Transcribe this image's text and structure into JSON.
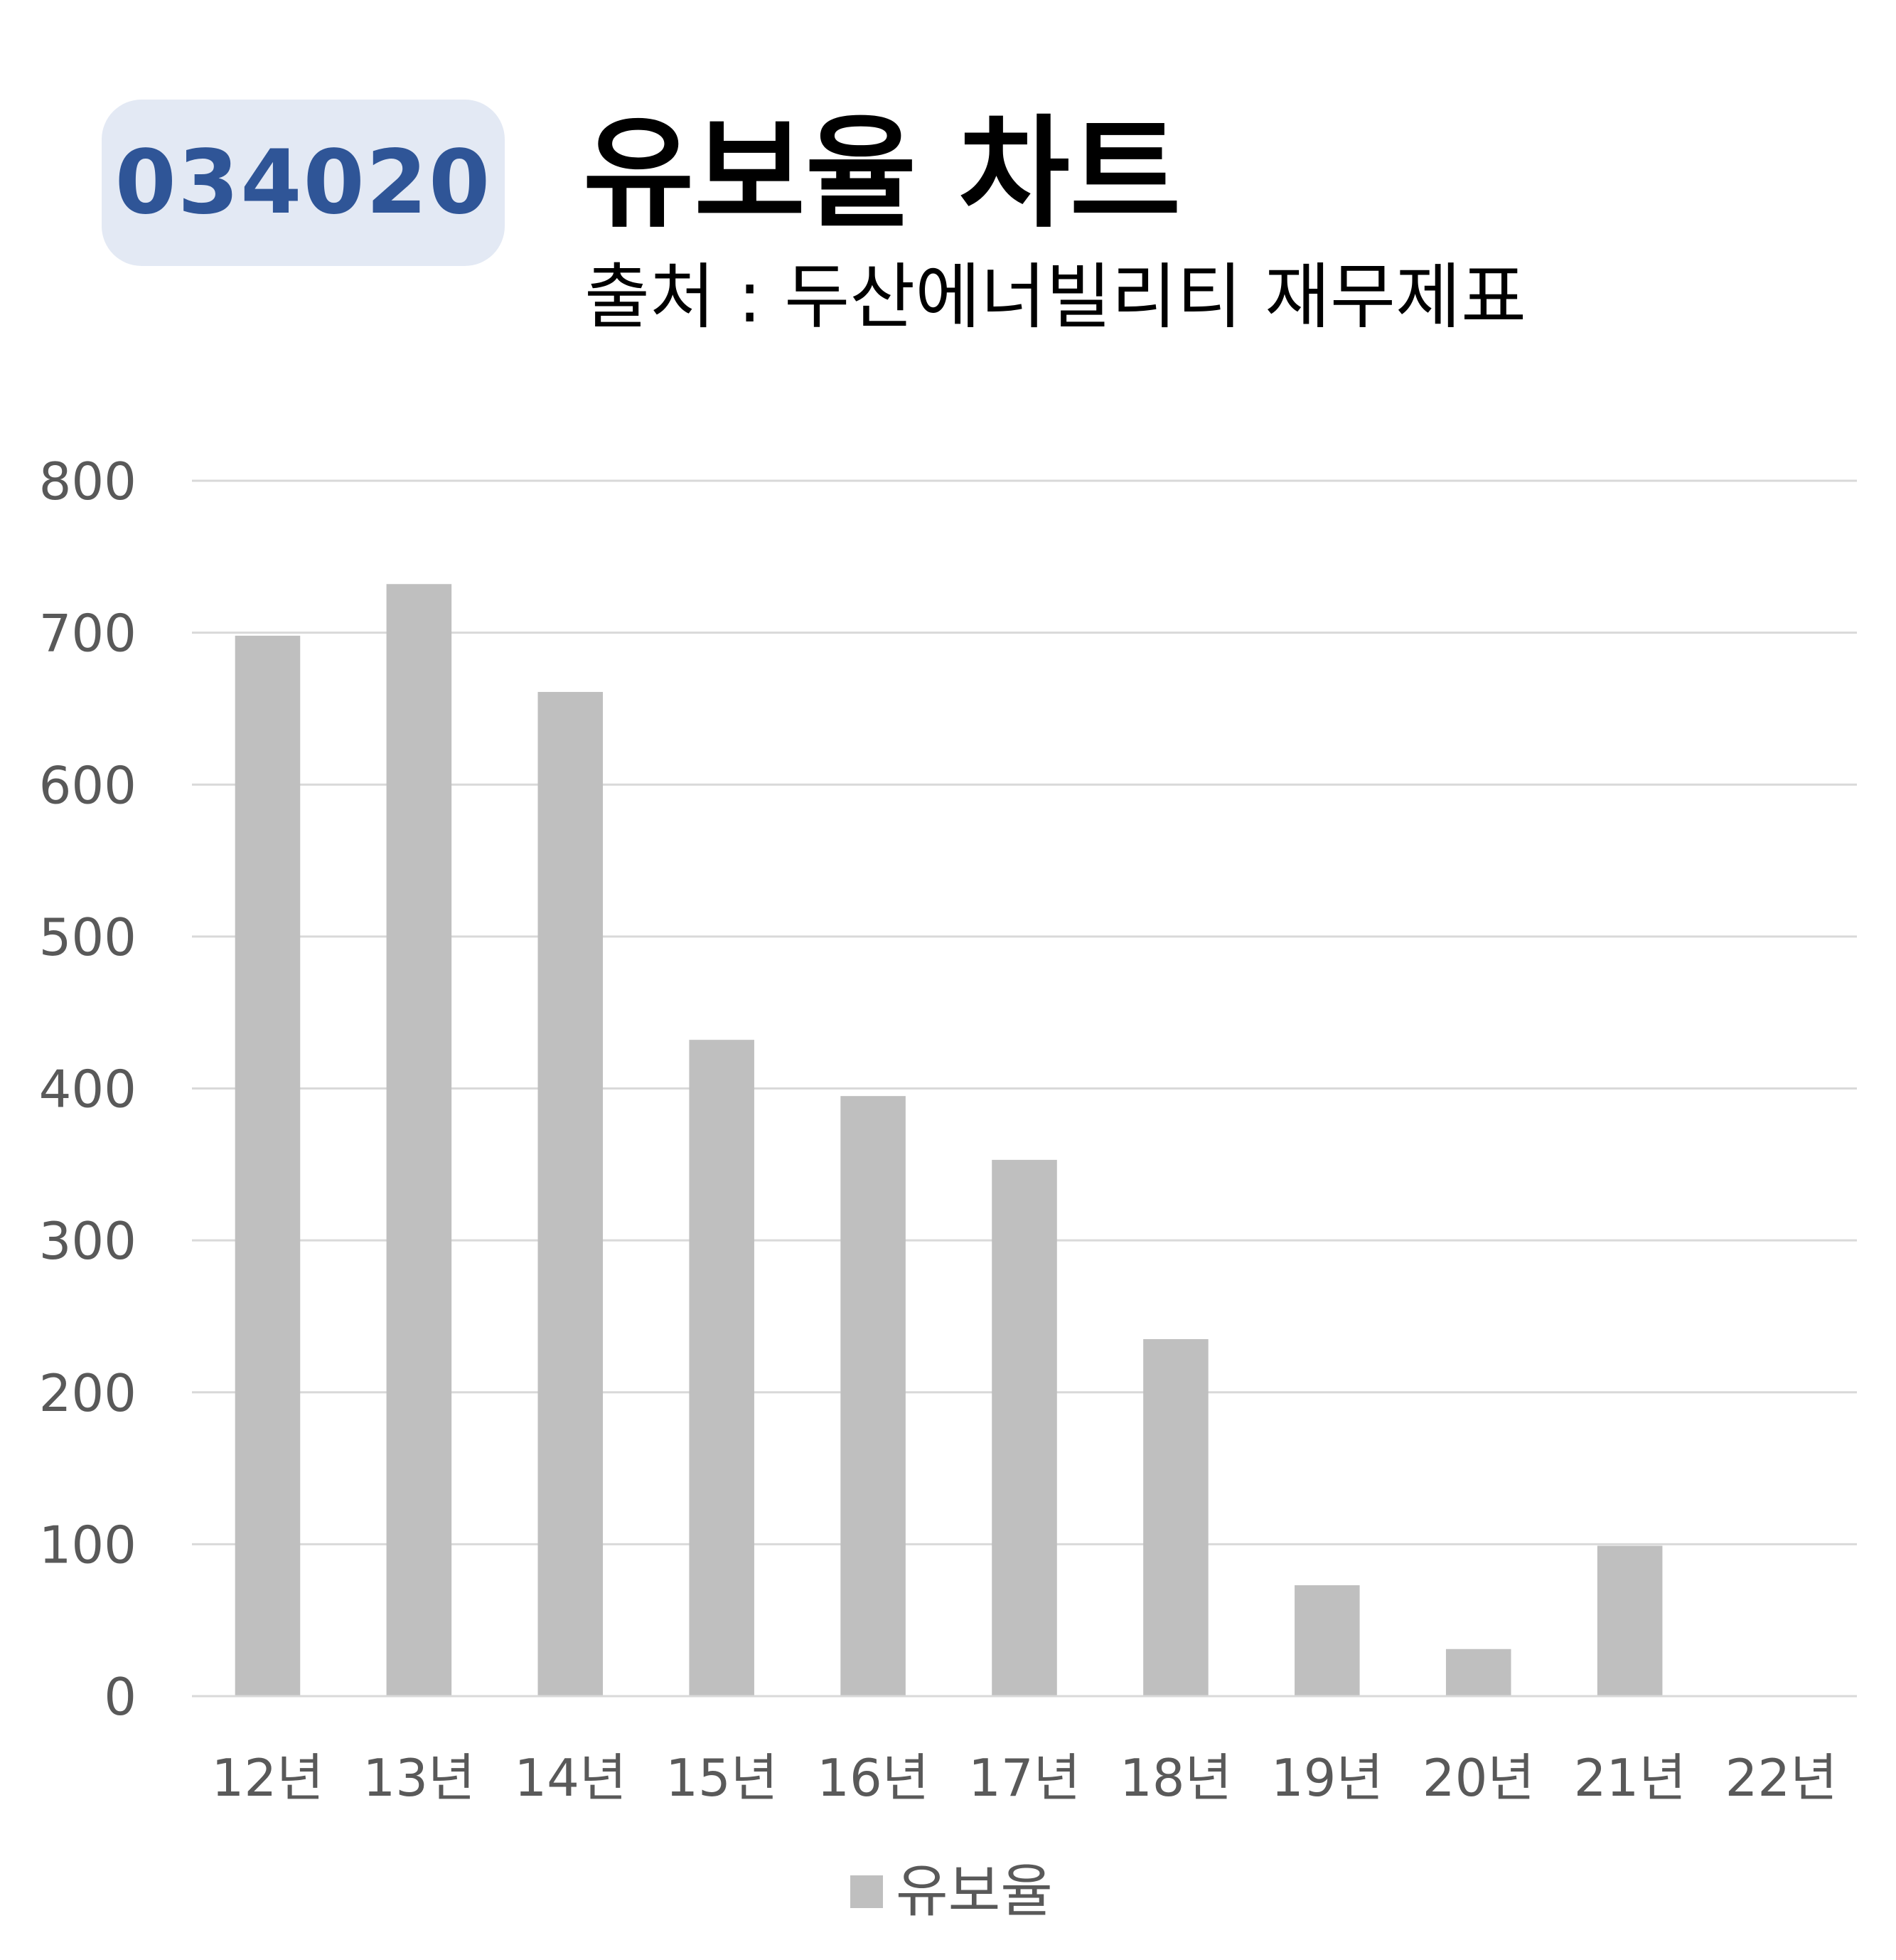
{
  "header": {
    "code": "034020",
    "title": "유보율 차트",
    "subtitle": "출처 : 두산에너빌리티 재무제표"
  },
  "colors": {
    "badge_bg": "#e3e9f4",
    "badge_text": "#2f5597",
    "bar": "#bfbfbf",
    "grid": "#d9d9d9",
    "tick_text": "#595959"
  },
  "chart_data": {
    "type": "bar",
    "title": "유보율 차트",
    "categories": [
      "12년",
      "13년",
      "14년",
      "15년",
      "16년",
      "17년",
      "18년",
      "19년",
      "20년",
      "21년",
      "22년"
    ],
    "series": [
      {
        "name": "유보율",
        "values": [
          698,
          732,
          661,
          432,
          395,
          353,
          235,
          73,
          31,
          99,
          null
        ]
      }
    ],
    "ylim": [
      0,
      800
    ],
    "yticks": [
      0,
      100,
      200,
      300,
      400,
      500,
      600,
      700,
      800
    ],
    "grid": true,
    "legend": "bottom-center"
  }
}
